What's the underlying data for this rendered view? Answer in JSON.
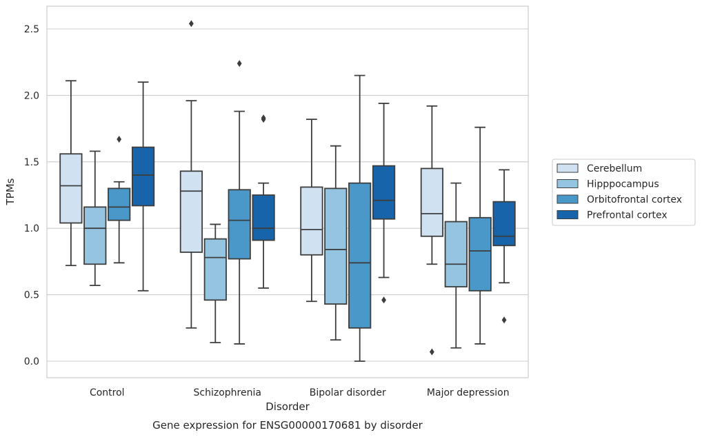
{
  "chart_data": {
    "type": "box",
    "title": "",
    "caption": "Gene expression for ENSG00000170681 by disorder",
    "xlabel": "Disorder",
    "ylabel": "TPMs",
    "ylim": [
      -0.12,
      2.68
    ],
    "yticks": [
      0.0,
      0.5,
      1.0,
      1.5,
      2.0,
      2.5
    ],
    "ytick_labels": [
      "0.0",
      "0.5",
      "1.0",
      "1.5",
      "2.0",
      "2.5"
    ],
    "grid": "horizontal",
    "legend_position": "right",
    "categories": [
      "Control",
      "Schizophrenia",
      "Bipolar disorder",
      "Major depression"
    ],
    "series": [
      {
        "name": "Cerebellum",
        "color": "#d0e1f2",
        "boxes": [
          {
            "whisker_low": 0.72,
            "q1": 1.04,
            "median": 1.32,
            "q3": 1.56,
            "whisker_high": 2.11,
            "outliers": []
          },
          {
            "whisker_low": 0.25,
            "q1": 0.82,
            "median": 1.28,
            "q3": 1.43,
            "whisker_high": 1.96,
            "outliers": [
              2.54
            ]
          },
          {
            "whisker_low": 0.45,
            "q1": 0.8,
            "median": 0.99,
            "q3": 1.31,
            "whisker_high": 1.82,
            "outliers": []
          },
          {
            "whisker_low": 0.73,
            "q1": 0.94,
            "median": 1.11,
            "q3": 1.45,
            "whisker_high": 1.92,
            "outliers": [
              0.07
            ]
          }
        ]
      },
      {
        "name": "Hipppocampus",
        "color": "#94c4df",
        "boxes": [
          {
            "whisker_low": 0.57,
            "q1": 0.73,
            "median": 1.0,
            "q3": 1.16,
            "whisker_high": 1.58,
            "outliers": []
          },
          {
            "whisker_low": 0.14,
            "q1": 0.46,
            "median": 0.78,
            "q3": 0.92,
            "whisker_high": 1.03,
            "outliers": []
          },
          {
            "whisker_low": 0.16,
            "q1": 0.43,
            "median": 0.84,
            "q3": 1.3,
            "whisker_high": 1.62,
            "outliers": []
          },
          {
            "whisker_low": 0.1,
            "q1": 0.56,
            "median": 0.73,
            "q3": 1.05,
            "whisker_high": 1.34,
            "outliers": []
          }
        ]
      },
      {
        "name": "Orbitofrontal cortex",
        "color": "#4a98c9",
        "boxes": [
          {
            "whisker_low": 0.74,
            "q1": 1.06,
            "median": 1.16,
            "q3": 1.3,
            "whisker_high": 1.35,
            "outliers": [
              1.67
            ]
          },
          {
            "whisker_low": 0.13,
            "q1": 0.77,
            "median": 1.06,
            "q3": 1.29,
            "whisker_high": 1.88,
            "outliers": [
              2.24
            ]
          },
          {
            "whisker_low": 0.0,
            "q1": 0.25,
            "median": 0.74,
            "q3": 1.34,
            "whisker_high": 2.15,
            "outliers": []
          },
          {
            "whisker_low": 0.13,
            "q1": 0.53,
            "median": 0.83,
            "q3": 1.08,
            "whisker_high": 1.76,
            "outliers": []
          }
        ]
      },
      {
        "name": "Prefrontal cortex",
        "color": "#1764ab",
        "boxes": [
          {
            "whisker_low": 0.53,
            "q1": 1.17,
            "median": 1.4,
            "q3": 1.61,
            "whisker_high": 2.1,
            "outliers": []
          },
          {
            "whisker_low": 0.55,
            "q1": 0.91,
            "median": 1.0,
            "q3": 1.25,
            "whisker_high": 1.34,
            "outliers": [
              1.82,
              1.83
            ]
          },
          {
            "whisker_low": 0.63,
            "q1": 1.07,
            "median": 1.21,
            "q3": 1.47,
            "whisker_high": 1.94,
            "outliers": [
              0.46
            ]
          },
          {
            "whisker_low": 0.59,
            "q1": 0.87,
            "median": 0.94,
            "q3": 1.2,
            "whisker_high": 1.44,
            "outliers": [
              0.31
            ]
          }
        ]
      }
    ]
  }
}
